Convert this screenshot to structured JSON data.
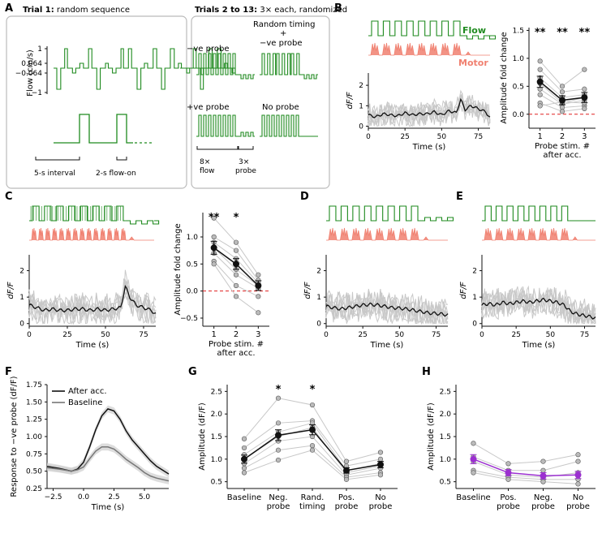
{
  "panels": {
    "A": {
      "letter": "A",
      "box1_title_bold": "Trial 1:",
      "box1_title_rest": " random sequence",
      "box2_title_bold": "Trials 2 to 13:",
      "box2_title_rest": " 3× each, randomized",
      "flow_axis_label": "Flow (cm/s)",
      "flow_ticks": [
        "1",
        "0.064",
        "−0.064",
        "−1"
      ],
      "interval_label": "5-s interval",
      "flowon_label": "2-s flow-on",
      "conditions": [
        "−ve probe",
        "Random timing",
        "+",
        "−ve probe",
        "+ve probe",
        "No probe"
      ],
      "flow_count_label": "8×",
      "flow_word": "flow",
      "probe_count_label": "3×",
      "probe_word": "probe"
    },
    "B": {
      "letter": "B",
      "flow_label": "Flow",
      "motor_label": "Motor",
      "trace_ylabel": "dF/F",
      "trace_xlabel": "Time (s)",
      "trace_xticks": [
        "0",
        "25",
        "50",
        "75"
      ],
      "trace_yticks": [
        "0",
        "1",
        "2"
      ],
      "amp_ylabel": "Amplitude fold change",
      "amp_xlabel_1": "Probe stim. #",
      "amp_xlabel_2": "after acc.",
      "amp_xticks": [
        "1",
        "2",
        "3"
      ],
      "amp_yticks": [
        "0.0",
        "0.5",
        "1.0",
        "1.5"
      ],
      "stars": [
        "**",
        "**",
        "**"
      ]
    },
    "C": {
      "letter": "C",
      "trace_ylabel": "dF/F",
      "trace_xlabel": "Time (s)",
      "trace_xticks": [
        "0",
        "25",
        "50",
        "75"
      ],
      "trace_yticks": [
        "0",
        "1",
        "2"
      ],
      "amp_ylabel": "Amplitude fold change",
      "amp_xlabel_1": "Probe stim. #",
      "amp_xlabel_2": "after acc.",
      "amp_xticks": [
        "1",
        "2",
        "3"
      ],
      "amp_yticks": [
        "−0.5",
        "0.0",
        "0.5",
        "1.0"
      ],
      "stars": [
        "**",
        "*"
      ]
    },
    "D": {
      "letter": "D",
      "trace_ylabel": "dF/F",
      "trace_xlabel": "Time (s)",
      "trace_xticks": [
        "0",
        "25",
        "50",
        "75"
      ],
      "trace_yticks": [
        "0",
        "1",
        "2"
      ]
    },
    "E": {
      "letter": "E",
      "trace_ylabel": "dF/F",
      "trace_xlabel": "Time (s)",
      "trace_xticks": [
        "0",
        "25",
        "50",
        "75"
      ],
      "trace_yticks": [
        "0",
        "1",
        "2"
      ]
    },
    "F": {
      "letter": "F",
      "ylabel": "Response to −ve probe (dF/F)",
      "xlabel": "Time (s)",
      "xticks": [
        "−2.5",
        "0.0",
        "2.5",
        "5.0"
      ],
      "yticks": [
        "0.25",
        "0.50",
        "0.75",
        "1.00",
        "1.25",
        "1.50",
        "1.75"
      ],
      "legend": [
        "After acc.",
        "Baseline"
      ]
    },
    "G": {
      "letter": "G",
      "ylabel": "Amplitude (dF/F)",
      "yticks": [
        "0.5",
        "1.0",
        "1.5",
        "2.0",
        "2.5"
      ],
      "xcats": [
        [
          "Baseline"
        ],
        [
          "Neg.",
          "probe"
        ],
        [
          "Rand.",
          "timing"
        ],
        [
          "Pos.",
          "probe"
        ],
        [
          "No",
          "probe"
        ]
      ],
      "stars": [
        "*",
        "*"
      ]
    },
    "H": {
      "letter": "H",
      "ylabel": "Amplitude (dF/F)",
      "yticks": [
        "0.5",
        "1.0",
        "1.5",
        "2.0",
        "2.5"
      ],
      "xcats": [
        [
          "Baseline"
        ],
        [
          "Pos.",
          "probe"
        ],
        [
          "Neg.",
          "probe"
        ],
        [
          "No",
          "probe"
        ]
      ]
    }
  },
  "colors": {
    "flow": "#1e8a1e",
    "motor": "#f08070",
    "mean": "#111111",
    "individual": "#c8c8c8",
    "zero_line": "#e02020",
    "purple": "#9b2fd0",
    "baseline_gray": "#777777"
  },
  "chart_data": [
    {
      "id": "B-amplitude",
      "type": "scatter",
      "categories": [
        "1",
        "2",
        "3"
      ],
      "series": [
        {
          "values": [
            0.58,
            0.25,
            0.3
          ]
        }
      ],
      "error": [
        0.1,
        0.08,
        0.09
      ],
      "individual": [
        [
          0.95,
          0.8,
          0.65,
          0.55,
          0.45,
          0.35,
          0.2,
          0.15
        ],
        [
          0.5,
          0.4,
          0.3,
          0.2,
          0.18,
          0.12,
          0.05,
          0.22
        ],
        [
          0.8,
          0.45,
          0.35,
          0.3,
          0.25,
          0.15,
          0.1,
          0.2
        ]
      ],
      "ylabel": "Amplitude fold change",
      "ylim": [
        -0.25,
        1.55
      ]
    },
    {
      "id": "C-amplitude",
      "type": "scatter",
      "categories": [
        "1",
        "2",
        "3"
      ],
      "series": [
        {
          "values": [
            0.8,
            0.5,
            0.1
          ]
        }
      ],
      "error": [
        0.12,
        0.1,
        0.09
      ],
      "individual": [
        [
          1.35,
          1.0,
          0.9,
          0.8,
          0.7,
          0.55,
          0.5
        ],
        [
          0.9,
          0.75,
          0.6,
          0.4,
          0.3,
          0.1,
          -0.1
        ],
        [
          0.3,
          0.2,
          0.15,
          0.1,
          0.05,
          -0.1,
          -0.4
        ]
      ],
      "ylabel": "Amplitude fold change",
      "ylim": [
        -0.65,
        1.45
      ]
    },
    {
      "id": "F-response",
      "type": "line",
      "xlabel": "Time (s)",
      "ylabel": "Response to −ve probe (dF/F)",
      "xlim": [
        -3,
        7
      ],
      "ylim": [
        0.25,
        1.75
      ],
      "series": [
        {
          "name": "After acc.",
          "x": [
            -3,
            -2,
            -1,
            -0.5,
            0,
            0.5,
            1,
            1.5,
            2,
            2.5,
            3,
            3.5,
            4,
            4.5,
            5,
            5.5,
            6,
            7
          ],
          "values": [
            0.57,
            0.54,
            0.5,
            0.53,
            0.63,
            0.85,
            1.1,
            1.3,
            1.4,
            1.37,
            1.25,
            1.08,
            0.95,
            0.85,
            0.75,
            0.65,
            0.57,
            0.46
          ]
        },
        {
          "name": "Baseline",
          "x": [
            -3,
            -2,
            -1,
            -0.5,
            0,
            0.5,
            1,
            1.5,
            2,
            2.5,
            3,
            3.5,
            4,
            4.5,
            5,
            5.5,
            6,
            7
          ],
          "values": [
            0.55,
            0.53,
            0.5,
            0.52,
            0.56,
            0.68,
            0.79,
            0.85,
            0.85,
            0.82,
            0.75,
            0.67,
            0.61,
            0.55,
            0.48,
            0.43,
            0.4,
            0.36
          ]
        }
      ]
    },
    {
      "id": "G-amplitude",
      "type": "scatter",
      "categories": [
        "Baseline",
        "Neg. probe",
        "Rand. timing",
        "Pos. probe",
        "No probe"
      ],
      "series": [
        {
          "values": [
            1.0,
            1.53,
            1.65,
            0.75,
            0.88
          ]
        }
      ],
      "error": [
        0.09,
        0.12,
        0.11,
        0.06,
        0.07
      ],
      "individual": [
        [
          1.45,
          1.25,
          1.1,
          1.0,
          0.9,
          0.8,
          0.7
        ],
        [
          2.35,
          1.8,
          1.6,
          1.5,
          1.4,
          1.2,
          0.98
        ],
        [
          2.2,
          1.85,
          1.8,
          1.7,
          1.5,
          1.3,
          1.2
        ],
        [
          0.95,
          0.85,
          0.75,
          0.7,
          0.65,
          0.6,
          0.55
        ],
        [
          1.15,
          1.0,
          0.9,
          0.85,
          0.8,
          0.7,
          0.65
        ]
      ],
      "ylabel": "Amplitude (dF/F)",
      "ylim": [
        0.35,
        2.65
      ]
    },
    {
      "id": "H-amplitude",
      "type": "scatter",
      "categories": [
        "Baseline",
        "Pos. probe",
        "Neg. probe",
        "No probe"
      ],
      "series": [
        {
          "values": [
            1.0,
            0.7,
            0.63,
            0.65
          ]
        }
      ],
      "error": [
        0.1,
        0.07,
        0.07,
        0.08
      ],
      "individual": [
        [
          1.35,
          1.05,
          0.95,
          0.75,
          0.7
        ],
        [
          0.9,
          0.75,
          0.65,
          0.6,
          0.55
        ],
        [
          0.95,
          0.75,
          0.6,
          0.55,
          0.5
        ],
        [
          1.1,
          0.95,
          0.7,
          0.55,
          0.45
        ]
      ],
      "ylabel": "Amplitude (dF/F)",
      "ylim": [
        0.35,
        2.65
      ]
    },
    {
      "id": "trace-B",
      "type": "line",
      "xlabel": "Time (s)",
      "ylabel": "dF/F",
      "xlim": [
        0,
        83
      ],
      "ylim": [
        -0.1,
        2.6
      ],
      "series": [
        {
          "x": [
            0,
            5,
            10,
            15,
            20,
            25,
            30,
            35,
            40,
            45,
            50,
            55,
            60,
            63,
            66,
            70,
            75,
            80,
            83
          ],
          "values": [
            0.55,
            0.45,
            0.6,
            0.55,
            0.5,
            0.65,
            0.55,
            0.6,
            0.6,
            0.7,
            0.55,
            0.75,
            0.65,
            1.3,
            0.8,
            1.0,
            0.85,
            0.7,
            0.4
          ]
        }
      ]
    },
    {
      "id": "trace-C",
      "type": "line",
      "xlabel": "Time (s)",
      "ylabel": "dF/F",
      "xlim": [
        0,
        83
      ],
      "ylim": [
        -0.1,
        2.6
      ],
      "series": [
        {
          "x": [
            0,
            5,
            10,
            15,
            20,
            25,
            30,
            35,
            40,
            45,
            50,
            55,
            60,
            63,
            66,
            70,
            75,
            80,
            83
          ],
          "values": [
            0.7,
            0.6,
            0.5,
            0.55,
            0.5,
            0.5,
            0.55,
            0.55,
            0.5,
            0.55,
            0.5,
            0.55,
            0.6,
            1.4,
            1.0,
            0.7,
            0.6,
            0.5,
            0.35
          ]
        }
      ]
    },
    {
      "id": "trace-D",
      "type": "line",
      "xlabel": "Time (s)",
      "ylabel": "dF/F",
      "xlim": [
        0,
        83
      ],
      "ylim": [
        -0.1,
        2.6
      ],
      "series": [
        {
          "x": [
            0,
            5,
            10,
            15,
            20,
            25,
            30,
            35,
            40,
            45,
            50,
            55,
            60,
            65,
            70,
            75,
            80,
            83
          ],
          "values": [
            0.65,
            0.6,
            0.55,
            0.6,
            0.65,
            0.7,
            0.72,
            0.7,
            0.65,
            0.6,
            0.58,
            0.55,
            0.5,
            0.45,
            0.4,
            0.38,
            0.35,
            0.32
          ]
        }
      ]
    },
    {
      "id": "trace-E",
      "type": "line",
      "xlabel": "Time (s)",
      "ylabel": "dF/F",
      "xlim": [
        0,
        83
      ],
      "ylim": [
        -0.1,
        2.6
      ],
      "series": [
        {
          "x": [
            0,
            5,
            10,
            15,
            20,
            25,
            30,
            35,
            40,
            45,
            50,
            55,
            60,
            65,
            70,
            75,
            80,
            83
          ],
          "values": [
            0.7,
            0.75,
            0.7,
            0.8,
            0.75,
            0.8,
            0.85,
            0.8,
            0.85,
            0.9,
            0.85,
            0.8,
            0.7,
            0.45,
            0.35,
            0.3,
            0.25,
            0.2
          ]
        }
      ]
    }
  ]
}
